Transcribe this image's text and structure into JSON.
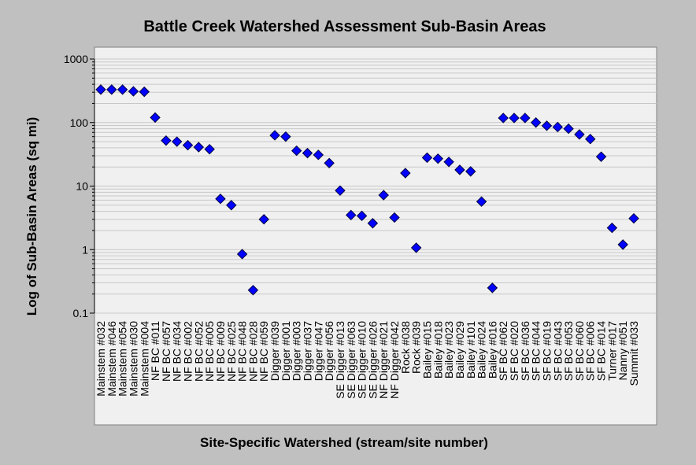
{
  "chart_data": {
    "type": "scatter",
    "title": "Battle Creek Watershed Assessment Sub-Basin Areas",
    "xlabel": "Site-Specific Watershed (stream/site number)",
    "ylabel": "Log of Sub-Basin Areas (sq mi)",
    "yscale": "log",
    "ylim": [
      0.1,
      1000
    ],
    "yticks": [
      "0.1",
      "1",
      "10",
      "100",
      "1000"
    ],
    "grid": "horizontal",
    "marker": "diamond",
    "colors": {
      "marker": "#0000ff",
      "plot_background": "#f0f0f0",
      "frame_background": "#c0c0c0",
      "grid": "#c8c8c8"
    },
    "categories": [
      "Mainstem #032",
      "Mainstem #046",
      "Mainstem #054",
      "Mainstem #030",
      "Mainstem #004",
      "NF BC #011",
      "NF BC #057",
      "NF BC #034",
      "NF BC #002",
      "NF BC #052",
      "NF BC #005",
      "NF BC #009",
      "NF BC #025",
      "NF BC #048",
      "NF BC #028",
      "NF BC #059",
      "Digger #039",
      "Digger #001",
      "Digger #003",
      "Digger #037",
      "Digger #047",
      "Digger #056",
      "SE Digger #013",
      "SE Digger #063",
      "SE Digger #010",
      "SE Digger #026",
      "NF Digger #021",
      "NF Digger #042",
      "Rock #038",
      "Rock #039",
      "Bailey #015",
      "Bailey #018",
      "Bailey #023",
      "Bailey #029",
      "Bailey #101",
      "Bailey #024",
      "Bailey #016",
      "SF BC #062",
      "SF BC #020",
      "SF BC #036",
      "SF BC #044",
      "SF BC #019",
      "SF BC #043",
      "SF BC #053",
      "SF BC #060",
      "SF BC #006",
      "SF BC #014",
      "Turner #017",
      "Nanny #051",
      "Summit #033"
    ],
    "values": [
      330,
      330,
      330,
      310,
      305,
      120,
      52,
      50,
      44,
      41,
      38,
      6.3,
      5.0,
      0.85,
      0.23,
      3.0,
      63,
      60,
      36,
      33,
      31,
      23,
      8.5,
      3.5,
      3.4,
      2.6,
      7.2,
      3.2,
      16,
      1.07,
      28,
      27,
      24,
      18,
      17,
      5.7,
      0.25,
      118,
      118,
      118,
      100,
      89,
      85,
      80,
      65,
      55,
      29,
      2.2,
      1.2,
      3.1
    ]
  }
}
